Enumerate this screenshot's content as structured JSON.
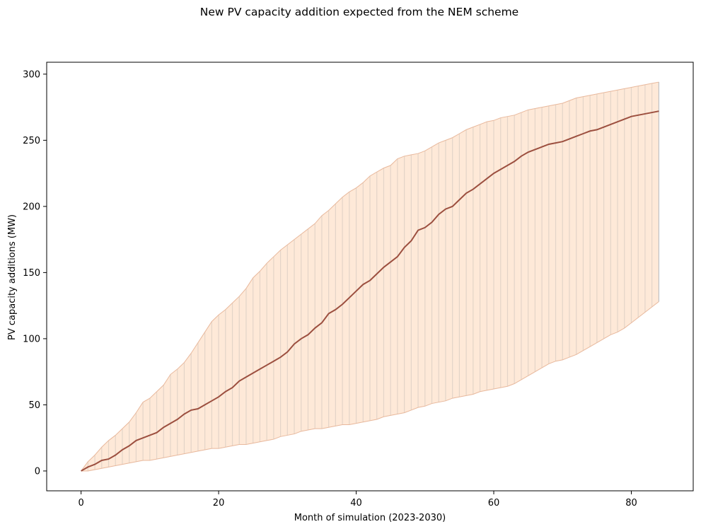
{
  "chart_data": {
    "type": "line",
    "title": "New PV capacity addition expected from the NEM scheme",
    "xlabel": "Month of simulation (2023-2030)",
    "ylabel": "PV capacity additions (MW)",
    "xlim": [
      -5,
      89
    ],
    "ylim": [
      -15,
      309
    ],
    "xticks": [
      0,
      20,
      40,
      60,
      80
    ],
    "yticks": [
      0,
      50,
      100,
      150,
      200,
      250,
      300
    ],
    "grid": false,
    "legend": "none",
    "colors": {
      "mean_line": "#9c4f3f",
      "band_fill": "#fde0c9",
      "band_edge": "#e8b89c",
      "vlines": "#9fb3c4"
    },
    "x": [
      0,
      1,
      2,
      3,
      4,
      5,
      6,
      7,
      8,
      9,
      10,
      11,
      12,
      13,
      14,
      15,
      16,
      17,
      18,
      19,
      20,
      21,
      22,
      23,
      24,
      25,
      26,
      27,
      28,
      29,
      30,
      31,
      32,
      33,
      34,
      35,
      36,
      37,
      38,
      39,
      40,
      41,
      42,
      43,
      44,
      45,
      46,
      47,
      48,
      49,
      50,
      51,
      52,
      53,
      54,
      55,
      56,
      57,
      58,
      59,
      60,
      61,
      62,
      63,
      64,
      65,
      66,
      67,
      68,
      69,
      70,
      71,
      72,
      73,
      74,
      75,
      76,
      77,
      78,
      79,
      80,
      81,
      82,
      83,
      84
    ],
    "series": [
      {
        "role": "mean",
        "values": [
          0,
          3,
          5,
          8,
          9,
          12,
          16,
          19,
          23,
          25,
          27,
          29,
          33,
          36,
          39,
          43,
          46,
          47,
          50,
          53,
          56,
          60,
          63,
          68,
          71,
          74,
          77,
          80,
          83,
          86,
          90,
          96,
          100,
          103,
          108,
          112,
          119,
          122,
          126,
          131,
          136,
          141,
          144,
          149,
          154,
          158,
          162,
          169,
          174,
          182,
          184,
          188,
          194,
          198,
          200,
          205,
          210,
          213,
          217,
          221,
          225,
          228,
          231,
          234,
          238,
          241,
          243,
          245,
          247,
          248,
          249,
          251,
          253,
          255,
          257,
          258,
          260,
          262,
          264,
          266,
          268,
          269,
          270,
          271,
          272
        ]
      },
      {
        "role": "upper",
        "values": [
          0,
          7,
          12,
          18,
          23,
          27,
          32,
          37,
          44,
          52,
          55,
          60,
          65,
          73,
          77,
          82,
          89,
          97,
          105,
          113,
          118,
          122,
          127,
          132,
          138,
          146,
          151,
          157,
          162,
          167,
          171,
          175,
          179,
          183,
          187,
          193,
          197,
          202,
          207,
          211,
          214,
          218,
          223,
          226,
          229,
          231,
          236,
          238,
          239,
          240,
          242,
          245,
          248,
          250,
          252,
          255,
          258,
          260,
          262,
          264,
          265,
          267,
          268,
          269,
          271,
          273,
          274,
          275,
          276,
          277,
          278,
          280,
          282,
          283,
          284,
          285,
          286,
          287,
          288,
          289,
          290,
          291,
          292,
          293,
          294
        ]
      },
      {
        "role": "lower",
        "values": [
          0,
          0,
          1,
          2,
          3,
          4,
          5,
          6,
          7,
          8,
          8,
          9,
          10,
          11,
          12,
          13,
          14,
          15,
          16,
          17,
          17,
          18,
          19,
          20,
          20,
          21,
          22,
          23,
          24,
          26,
          27,
          28,
          30,
          31,
          32,
          32,
          33,
          34,
          35,
          35,
          36,
          37,
          38,
          39,
          41,
          42,
          43,
          44,
          46,
          48,
          49,
          51,
          52,
          53,
          55,
          56,
          57,
          58,
          60,
          61,
          62,
          63,
          64,
          66,
          69,
          72,
          75,
          78,
          81,
          83,
          84,
          86,
          88,
          91,
          94,
          97,
          100,
          103,
          105,
          108,
          112,
          116,
          120,
          124,
          128
        ]
      }
    ]
  }
}
